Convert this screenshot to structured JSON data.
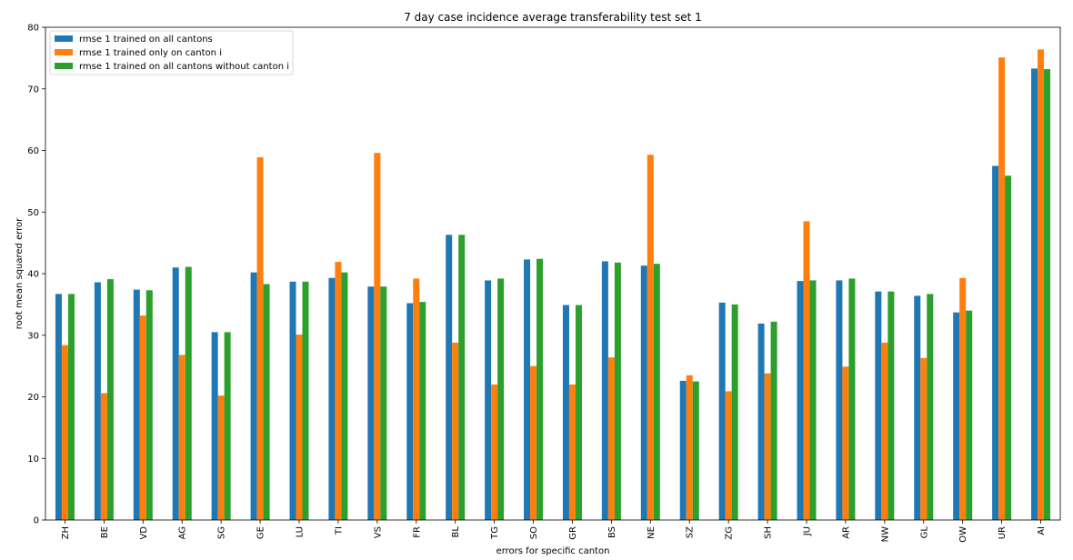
{
  "chart_data": {
    "type": "bar",
    "title": "7 day case incidence average transferability test set 1",
    "xlabel": "errors for specific canton",
    "ylabel": "root mean squared error",
    "ylim": [
      0,
      80
    ],
    "yticks": [
      0,
      10,
      20,
      30,
      40,
      50,
      60,
      70,
      80
    ],
    "grid": false,
    "legend_position": "top-left",
    "categories": [
      "ZH",
      "BE",
      "VD",
      "AG",
      "SG",
      "GE",
      "LU",
      "TI",
      "VS",
      "FR",
      "BL",
      "TG",
      "SO",
      "GR",
      "BS",
      "NE",
      "SZ",
      "ZG",
      "SH",
      "JU",
      "AR",
      "NW",
      "GL",
      "OW",
      "UR",
      "AI"
    ],
    "series": [
      {
        "name": "rmse 1 trained on all cantons",
        "color": "#1f77b4",
        "values": [
          36.7,
          38.6,
          37.4,
          41.0,
          30.5,
          40.2,
          38.7,
          39.3,
          37.9,
          35.2,
          46.3,
          38.9,
          42.3,
          34.9,
          42.0,
          41.3,
          22.6,
          35.3,
          31.9,
          38.8,
          38.9,
          37.1,
          36.4,
          33.7,
          57.5,
          73.3
        ]
      },
      {
        "name": "rmse 1 trained only on canton i",
        "color": "#ff7f0e",
        "values": [
          28.4,
          20.6,
          33.2,
          26.8,
          20.2,
          58.9,
          30.1,
          41.9,
          59.6,
          39.2,
          28.8,
          22.0,
          25.0,
          22.0,
          26.4,
          59.3,
          23.5,
          20.9,
          23.8,
          48.5,
          24.9,
          28.8,
          26.3,
          39.3,
          75.1,
          76.4
        ]
      },
      {
        "name": "rmse 1 trained on all cantons without canton i",
        "color": "#2ca02c",
        "values": [
          36.7,
          39.1,
          37.3,
          41.1,
          30.5,
          38.3,
          38.7,
          40.2,
          37.9,
          35.4,
          46.3,
          39.2,
          42.4,
          34.9,
          41.8,
          41.6,
          22.5,
          35.0,
          32.2,
          38.9,
          39.2,
          37.1,
          36.7,
          34.0,
          55.9,
          73.2
        ]
      }
    ]
  }
}
